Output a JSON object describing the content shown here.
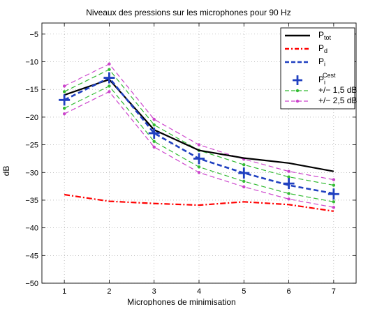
{
  "chart_data": {
    "type": "line",
    "title": "Niveaux des pressions sur les microphones pour 90 Hz",
    "xlabel": "Microphones de minimisation",
    "ylabel": "dB",
    "x": [
      1,
      2,
      3,
      4,
      5,
      6,
      7
    ],
    "xlim": [
      0.5,
      7.5
    ],
    "ylim": [
      -50,
      -3
    ],
    "xticks": [
      1,
      2,
      3,
      4,
      5,
      6,
      7
    ],
    "yticks": [
      -5,
      -10,
      -15,
      -20,
      -25,
      -30,
      -35,
      -40,
      -45,
      -50
    ],
    "grid": true,
    "legend_position": "top-right",
    "series": [
      {
        "key": "ptot",
        "name": "P",
        "sub": "tot",
        "sup": "",
        "color": "#000000",
        "style": "solid",
        "marker": "none",
        "values": [
          -16.0,
          -13.2,
          -22.3,
          -26.0,
          -27.4,
          -28.3,
          -29.8
        ]
      },
      {
        "key": "pd",
        "name": "P",
        "sub": "d",
        "sup": "",
        "color": "#ff0000",
        "style": "dashdot",
        "marker": "none",
        "values": [
          -34.0,
          -35.2,
          -35.6,
          -35.9,
          -35.3,
          -35.8,
          -37.0
        ]
      },
      {
        "key": "pi",
        "name": "P",
        "sub": "i",
        "sup": "",
        "color": "#2040c0",
        "style": "dashed",
        "marker": "none",
        "values": [
          -16.9,
          -12.9,
          -22.9,
          -27.5,
          -30.1,
          -32.3,
          -33.8
        ]
      },
      {
        "key": "picest",
        "name": "P",
        "sub": "i",
        "sup": "Cest",
        "color": "#2040c0",
        "style": "none",
        "marker": "plus",
        "values": [
          -16.9,
          -12.9,
          -22.9,
          -27.5,
          -30.1,
          -32.0,
          -33.9
        ]
      },
      {
        "key": "band15",
        "name": "+/− 1,5 dB",
        "sub": "",
        "sup": "",
        "color": "#33bb33",
        "style": "dashed",
        "marker": "dot",
        "values_upper": [
          -15.4,
          -11.4,
          -21.4,
          -26.0,
          -28.6,
          -30.8,
          -32.3
        ],
        "values_lower": [
          -18.4,
          -14.4,
          -24.4,
          -29.0,
          -31.6,
          -33.8,
          -35.3
        ]
      },
      {
        "key": "band25",
        "name": "+/− 2,5 dB",
        "sub": "",
        "sup": "",
        "color": "#cc44cc",
        "style": "dashed",
        "marker": "dot",
        "values_upper": [
          -14.4,
          -10.4,
          -20.4,
          -25.0,
          -27.6,
          -29.8,
          -31.3
        ],
        "values_lower": [
          -19.4,
          -15.4,
          -25.4,
          -30.0,
          -32.6,
          -34.8,
          -36.3
        ]
      }
    ]
  }
}
